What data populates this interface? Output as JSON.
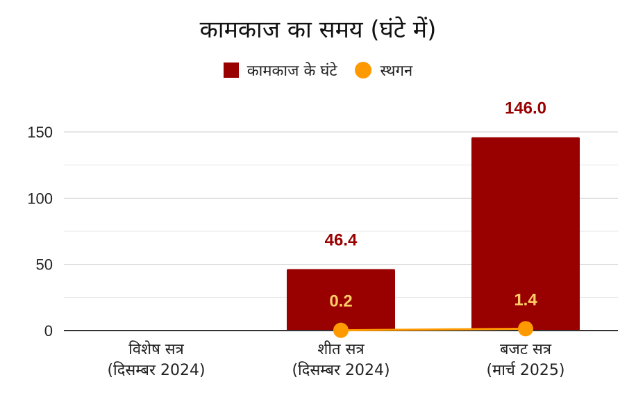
{
  "chart_data": {
    "type": "bar",
    "title": "कामकाज का समय (घंटे में)",
    "categories": [
      [
        "विशेष सत्र",
        "(दिसम्बर 2024)"
      ],
      [
        "शीत सत्र",
        "(दिसम्बर 2024)"
      ],
      [
        "बजट सत्र",
        "(मार्च 2025)"
      ]
    ],
    "series": [
      {
        "name": "कामकाज के घंटे",
        "kind": "bar",
        "color": "#990000",
        "values": [
          0,
          46.4,
          146.0
        ],
        "labels": [
          "",
          "46.4",
          "146.0"
        ]
      },
      {
        "name": "स्थगन",
        "kind": "line",
        "color": "#ff9900",
        "values": [
          null,
          0.2,
          1.4
        ],
        "labels": [
          "",
          "0.2",
          "1.4"
        ]
      }
    ],
    "ylim": [
      0,
      150
    ],
    "yticks": [
      "0",
      "50",
      "100",
      "150"
    ],
    "grid": true,
    "legend_position": "top"
  }
}
